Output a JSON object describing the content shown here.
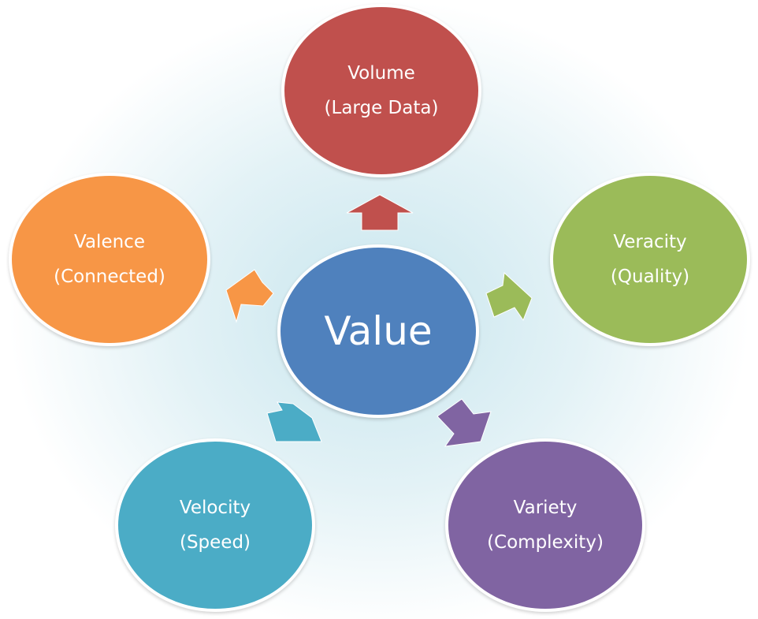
{
  "center": {
    "label": "Value",
    "color": "#4f81bd"
  },
  "nodes": [
    {
      "id": "volume",
      "title": "Volume",
      "subtitle": "(Large Data)",
      "color": "#c0504d",
      "arrow_icon": "arrow-up-icon"
    },
    {
      "id": "veracity",
      "title": "Veracity",
      "subtitle": "(Quality)",
      "color": "#9bbb59",
      "arrow_icon": "arrow-right-icon"
    },
    {
      "id": "variety",
      "title": "Variety",
      "subtitle": "(Complexity)",
      "color": "#8064a2",
      "arrow_icon": "arrow-down-right-icon"
    },
    {
      "id": "velocity",
      "title": "Velocity",
      "subtitle": "(Speed)",
      "color": "#4bacc6",
      "arrow_icon": "arrow-down-left-icon"
    },
    {
      "id": "valence",
      "title": "Valence",
      "subtitle": "(Connected)",
      "color": "#f79646",
      "arrow_icon": "arrow-left-icon"
    }
  ]
}
